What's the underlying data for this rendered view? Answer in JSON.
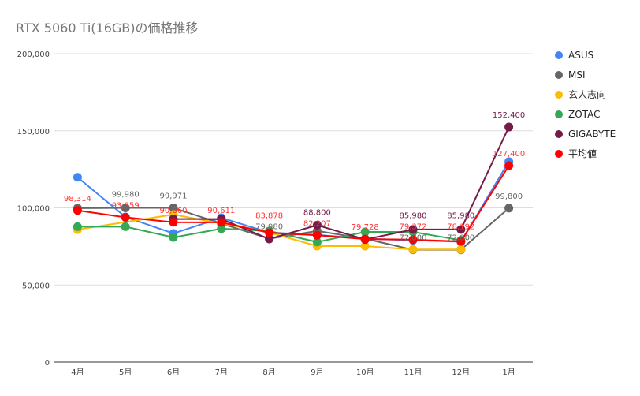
{
  "chart_data": {
    "type": "line",
    "title": "RTX 5060 Ti(16GB)の価格推移",
    "categories": [
      "4月",
      "5月",
      "6月",
      "7月",
      "8月",
      "9月",
      "10月",
      "11月",
      "12月",
      "1月"
    ],
    "ylim": [
      0,
      200000
    ],
    "yticks": [
      0,
      50000,
      100000,
      150000,
      200000
    ],
    "ytick_labels": [
      "0",
      "50,000",
      "100,000",
      "150,000",
      "200,000"
    ],
    "grid": true,
    "legend": "right",
    "series": [
      {
        "name": "ASUS",
        "color": "#4285f4",
        "values": [
          119800,
          94100,
          83400,
          93600,
          84000,
          82500,
          80000,
          79000,
          78000,
          130000
        ],
        "labels": [
          null,
          null,
          null,
          null,
          null,
          null,
          null,
          null,
          null,
          null
        ]
      },
      {
        "name": "MSI",
        "color": "#666666",
        "values": [
          99800,
          99980,
          99971,
          89800,
          79980,
          85000,
          80000,
          72800,
          72800,
          99800
        ],
        "labels": [
          null,
          "99,980",
          "99,971",
          null,
          "79,980",
          null,
          null,
          "72,800",
          "72,800",
          "99,800"
        ]
      },
      {
        "name": "玄人志向",
        "color": "#fbbc04",
        "values": [
          85900,
          null,
          95700,
          null,
          84000,
          75200,
          75200,
          73000,
          73000,
          null
        ],
        "labels": [
          null,
          null,
          null,
          null,
          null,
          null,
          null,
          null,
          null,
          null
        ]
      },
      {
        "name": "ZOTAC",
        "color": "#34a853",
        "values": [
          87800,
          87800,
          80800,
          86500,
          85000,
          77800,
          84400,
          84400,
          79000,
          null
        ],
        "labels": [
          null,
          null,
          null,
          null,
          null,
          null,
          null,
          null,
          null,
          null
        ]
      },
      {
        "name": "GIGABYTE",
        "color": "#741b47",
        "values": [
          null,
          null,
          92800,
          92800,
          79800,
          88800,
          79500,
          85980,
          85980,
          152400
        ],
        "labels": [
          null,
          null,
          null,
          null,
          null,
          "88,800",
          null,
          "85,980",
          "85,980",
          "152,400"
        ]
      },
      {
        "name": "平均値",
        "color": "#ff0000",
        "values": [
          98314,
          93859,
          90660,
          90611,
          83878,
          82207,
          79728,
          79372,
          78192,
          127400
        ],
        "labels": [
          "98,314",
          "93,859",
          "90,660",
          "90,611",
          "83,878",
          "82,207",
          "79,728",
          "79,372",
          "78,192",
          "127,400"
        ]
      }
    ]
  }
}
